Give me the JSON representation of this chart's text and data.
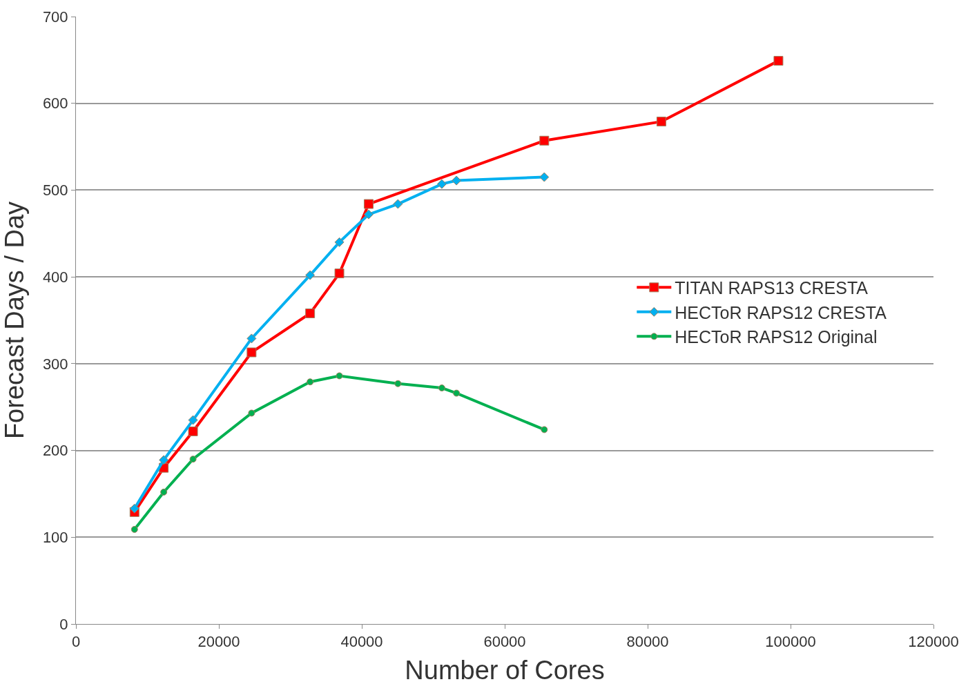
{
  "chart_data": {
    "type": "line",
    "xlabel": "Number of Cores",
    "ylabel": "Forecast Days / Day",
    "xlim": [
      0,
      120000
    ],
    "xticks": [
      0,
      20000,
      40000,
      60000,
      80000,
      100000,
      120000
    ],
    "ylim": [
      0,
      700
    ],
    "yticks": [
      0,
      100,
      200,
      300,
      400,
      500,
      600,
      700
    ],
    "grid": "y",
    "legend": "right",
    "series": [
      {
        "name": "TITAN RAPS13 CRESTA",
        "color": "#ff0000",
        "marker": "square",
        "x": [
          8192,
          12288,
          16384,
          24576,
          32768,
          36864,
          40960,
          65536,
          81920,
          98304
        ],
        "values": [
          129,
          180,
          222,
          313,
          358,
          404,
          484,
          557,
          579,
          649
        ]
      },
      {
        "name": "HECToR RAPS12 CRESTA",
        "color": "#00b0f0",
        "marker": "diamond",
        "x": [
          8192,
          12288,
          16384,
          24576,
          32768,
          36864,
          40960,
          45056,
          51200,
          53248,
          65536
        ],
        "values": [
          133,
          189,
          235,
          329,
          402,
          440,
          472,
          484,
          507,
          511,
          515
        ]
      },
      {
        "name": "HECToR RAPS12 Original",
        "color": "#00b050",
        "marker": "circle",
        "x": [
          8192,
          12288,
          16384,
          24576,
          32768,
          36864,
          45056,
          51200,
          53248,
          65536
        ],
        "values": [
          109,
          152,
          190,
          243,
          279,
          286,
          277,
          272,
          266,
          224
        ]
      }
    ]
  }
}
